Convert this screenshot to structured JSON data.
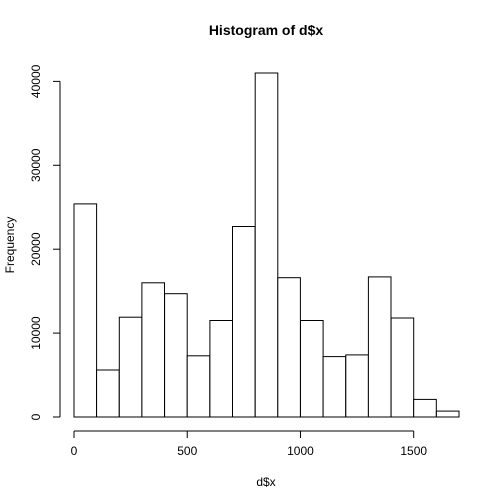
{
  "chart_data": {
    "type": "bar",
    "title": "Histogram of d$x",
    "xlabel": "d$x",
    "ylabel": "Frequency",
    "bin_edges": [
      0,
      100,
      200,
      300,
      400,
      500,
      600,
      700,
      800,
      900,
      1000,
      1100,
      1200,
      1300,
      1400,
      1500,
      1600,
      1700
    ],
    "values": [
      25400,
      5600,
      11900,
      16000,
      14700,
      7300,
      11500,
      22700,
      41000,
      16600,
      11500,
      7200,
      7400,
      16700,
      11800,
      2100,
      700
    ],
    "xlim": [
      0,
      1700
    ],
    "ylim": [
      0,
      41000
    ],
    "x_ticks": [
      0,
      500,
      1000,
      1500
    ],
    "x_tick_labels": [
      "0",
      "500",
      "1000",
      "1500"
    ],
    "y_ticks": [
      0,
      10000,
      20000,
      30000,
      40000
    ],
    "y_tick_labels": [
      "0",
      "10000",
      "20000",
      "30000",
      "40000"
    ],
    "grid": false,
    "colors": {
      "bar_fill": "#ffffff",
      "bar_stroke": "#000000"
    }
  }
}
